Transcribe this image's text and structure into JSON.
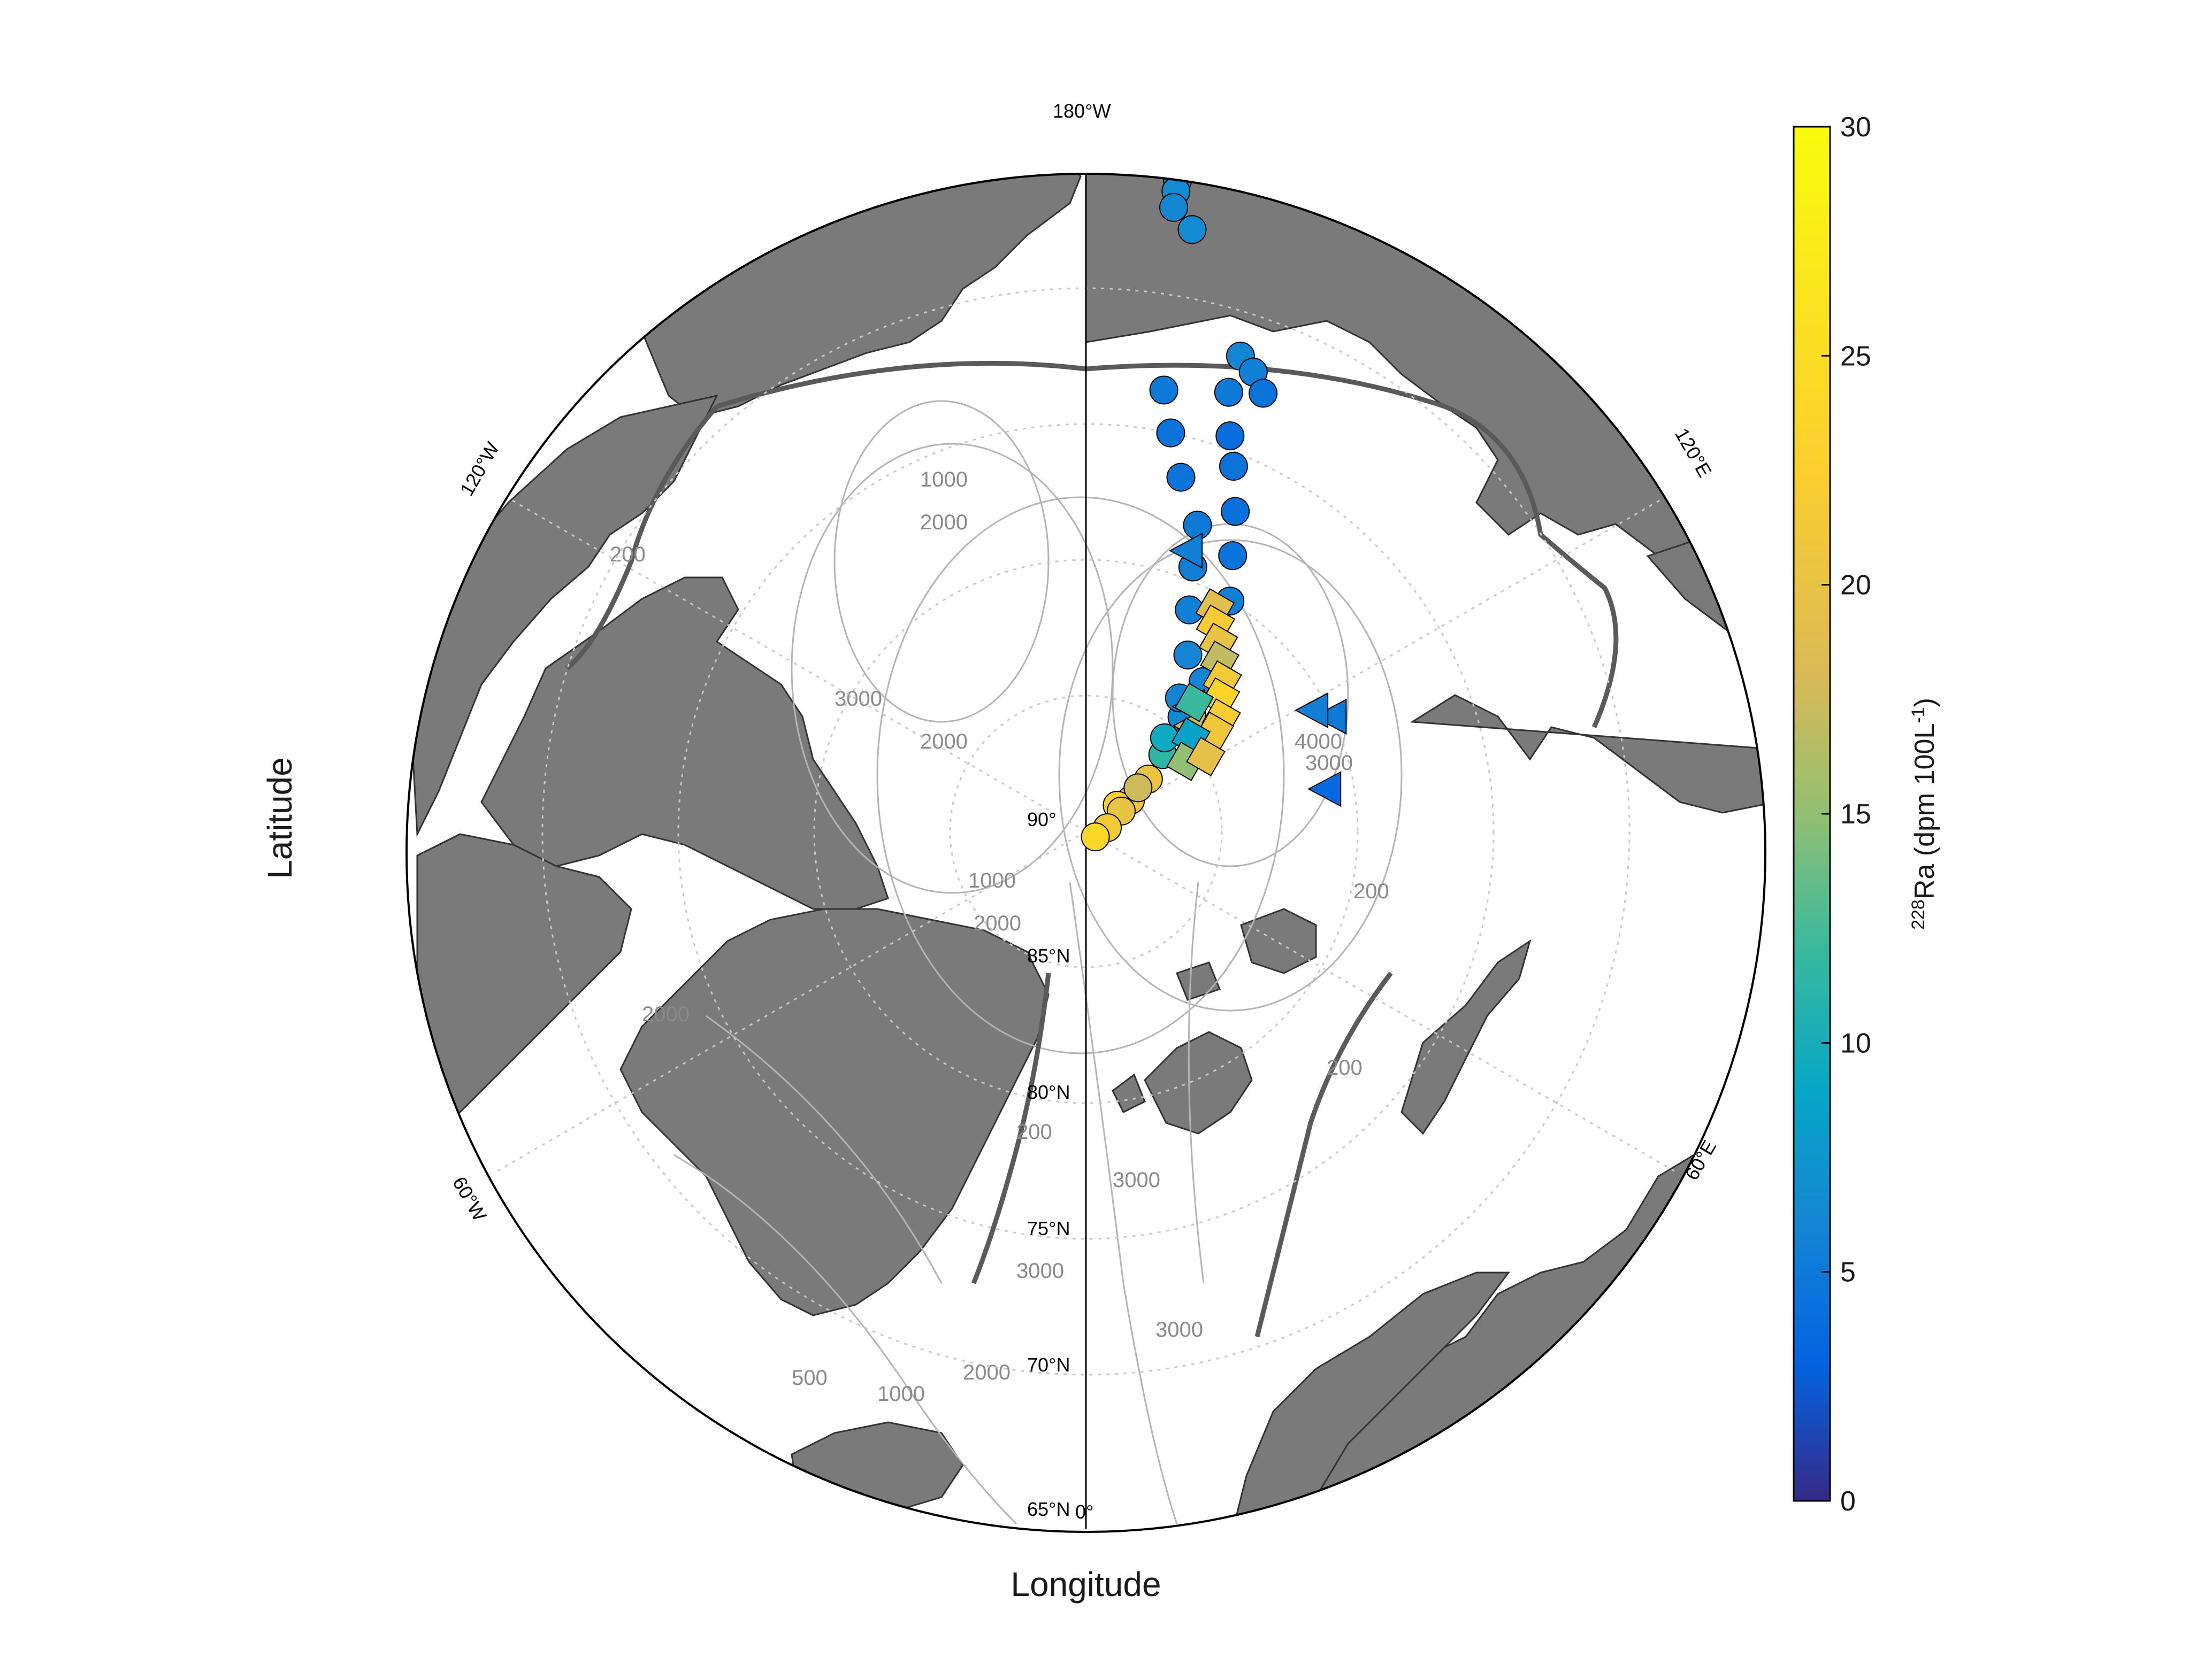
{
  "map": {
    "xlabel": "Longitude",
    "ylabel": "Latitude",
    "pole_label": "90°",
    "lat_labels": [
      "85°N",
      "80°N",
      "75°N",
      "70°N",
      "65°N"
    ],
    "lon_labels": {
      "top": "180°W",
      "bottom": "0°",
      "upper_left": "120°W",
      "lower_left": "60°W",
      "upper_right": "120°E",
      "lower_right": "60°E"
    },
    "depth_contour_labels": [
      "200",
      "500",
      "1000",
      "2000",
      "3000",
      "4000"
    ],
    "colors": {
      "land": "#7a7a7a",
      "ocean": "#ffffff",
      "contour_thin": "#b4b4b4",
      "contour_thick": "#5a5a5a",
      "drift_line": "#000000",
      "start_marker": "#ff00ff",
      "end_marker_green": "#00ff00",
      "end_marker_red": "#ff0000"
    }
  },
  "colorbar": {
    "label_prefix": "",
    "label_sup": "228",
    "label_main": "Ra (dpm 100L",
    "label_sup2": "-1",
    "label_suffix": ")",
    "min": 0,
    "max": 30,
    "ticks": [
      "0",
      "5",
      "10",
      "15",
      "20",
      "25",
      "30"
    ],
    "colormap": "parula"
  },
  "chart_data": {
    "type": "scatter",
    "projection": "north polar stereographic",
    "lat_range": [
      65,
      90
    ],
    "xlabel": "Longitude",
    "ylabel": "Latitude",
    "colorbar_variable": "228Ra (dpm 100L-1)",
    "colorbar_range": [
      0,
      30
    ],
    "series": [
      {
        "marker": "circle",
        "points": [
          {
            "lon": 172,
            "lat": 65.8,
            "ra": 6.5
          },
          {
            "lon": 172,
            "lat": 66.2,
            "ra": 6.5
          },
          {
            "lon": 172,
            "lat": 66.8,
            "ra": 6.2
          },
          {
            "lon": 170,
            "lat": 67.5,
            "ra": 6.5
          },
          {
            "lon": 162,
            "lat": 71.6,
            "ra": 6.2
          },
          {
            "lon": 160,
            "lat": 72.0,
            "ra": 5.5
          },
          {
            "lon": 158,
            "lat": 72.6,
            "ra": 4.5
          },
          {
            "lon": 162,
            "lat": 73.0,
            "ra": 5.0
          },
          {
            "lon": 160,
            "lat": 74.5,
            "ra": 4.0
          },
          {
            "lon": 158,
            "lat": 75.5,
            "ra": 4.5
          },
          {
            "lon": 155,
            "lat": 77.0,
            "ra": 4.2
          },
          {
            "lon": 152,
            "lat": 78.5,
            "ra": 4.5
          },
          {
            "lon": 148,
            "lat": 80.0,
            "ra": 5.5
          },
          {
            "lon": 145,
            "lat": 81.5,
            "ra": 6.0
          },
          {
            "lon": 142,
            "lat": 83.0,
            "ra": 6.0
          },
          {
            "lon": 140,
            "lat": 84.5,
            "ra": 6.5
          },
          {
            "lon": 135,
            "lat": 86.0,
            "ra": 11.5
          },
          {
            "lon": 130,
            "lat": 87.0,
            "ra": 20.5
          },
          {
            "lon": 125,
            "lat": 88.0,
            "ra": 21.0
          },
          {
            "lon": 130,
            "lat": 88.5,
            "ra": 22.5
          },
          {
            "lon": 170,
            "lat": 73.5,
            "ra": 5.0
          },
          {
            "lon": 168,
            "lat": 75.0,
            "ra": 4.5
          },
          {
            "lon": 165,
            "lat": 76.5,
            "ra": 4.5
          },
          {
            "lon": 160,
            "lat": 78.0,
            "ra": 5.0
          },
          {
            "lon": 158,
            "lat": 79.5,
            "ra": 5.5
          },
          {
            "lon": 155,
            "lat": 81.0,
            "ra": 5.5
          },
          {
            "lon": 150,
            "lat": 82.5,
            "ra": 6.0
          },
          {
            "lon": 145,
            "lat": 84.0,
            "ra": 6.0
          },
          {
            "lon": 140,
            "lat": 85.5,
            "ra": 9.5
          },
          {
            "lon": 130,
            "lat": 87.5,
            "ra": 17.5
          },
          {
            "lon": 120,
            "lat": 88.5,
            "ra": 20.0
          },
          {
            "lon": 100,
            "lat": 89.2,
            "ra": 21.5
          },
          {
            "lon": 60,
            "lat": 89.6,
            "ra": 24.0
          }
        ]
      },
      {
        "marker": "triangle",
        "points": [
          {
            "lon": 160,
            "lat": 79.0,
            "ra": 5.5
          },
          {
            "lon": 115,
            "lat": 80.0,
            "ra": 5.0
          },
          {
            "lon": 118,
            "lat": 80.5,
            "ra": 5.5
          },
          {
            "lon": 100,
            "lat": 81.0,
            "ra": 3.5
          },
          {
            "lon": 140,
            "lat": 84.0,
            "ra": 14.0
          },
          {
            "lon": 135,
            "lat": 84.5,
            "ra": 17.5
          }
        ]
      },
      {
        "marker": "square",
        "points": [
          {
            "lon": 150,
            "lat": 80.5,
            "ra": 19.0
          },
          {
            "lon": 148,
            "lat": 81.0,
            "ra": 22.0
          },
          {
            "lon": 145,
            "lat": 81.5,
            "ra": 20.0
          },
          {
            "lon": 142,
            "lat": 82.0,
            "ra": 17.0
          },
          {
            "lon": 138,
            "lat": 82.5,
            "ra": 21.5
          },
          {
            "lon": 135,
            "lat": 83.0,
            "ra": 23.5
          },
          {
            "lon": 130,
            "lat": 83.5,
            "ra": 22.0
          },
          {
            "lon": 128,
            "lat": 84.0,
            "ra": 21.0
          },
          {
            "lon": 140,
            "lat": 83.8,
            "ra": 12.0
          },
          {
            "lon": 132,
            "lat": 84.8,
            "ra": 8.5
          },
          {
            "lon": 125,
            "lat": 85.5,
            "ra": 15.0
          },
          {
            "lon": 122,
            "lat": 84.8,
            "ra": 19.5
          }
        ]
      }
    ]
  }
}
